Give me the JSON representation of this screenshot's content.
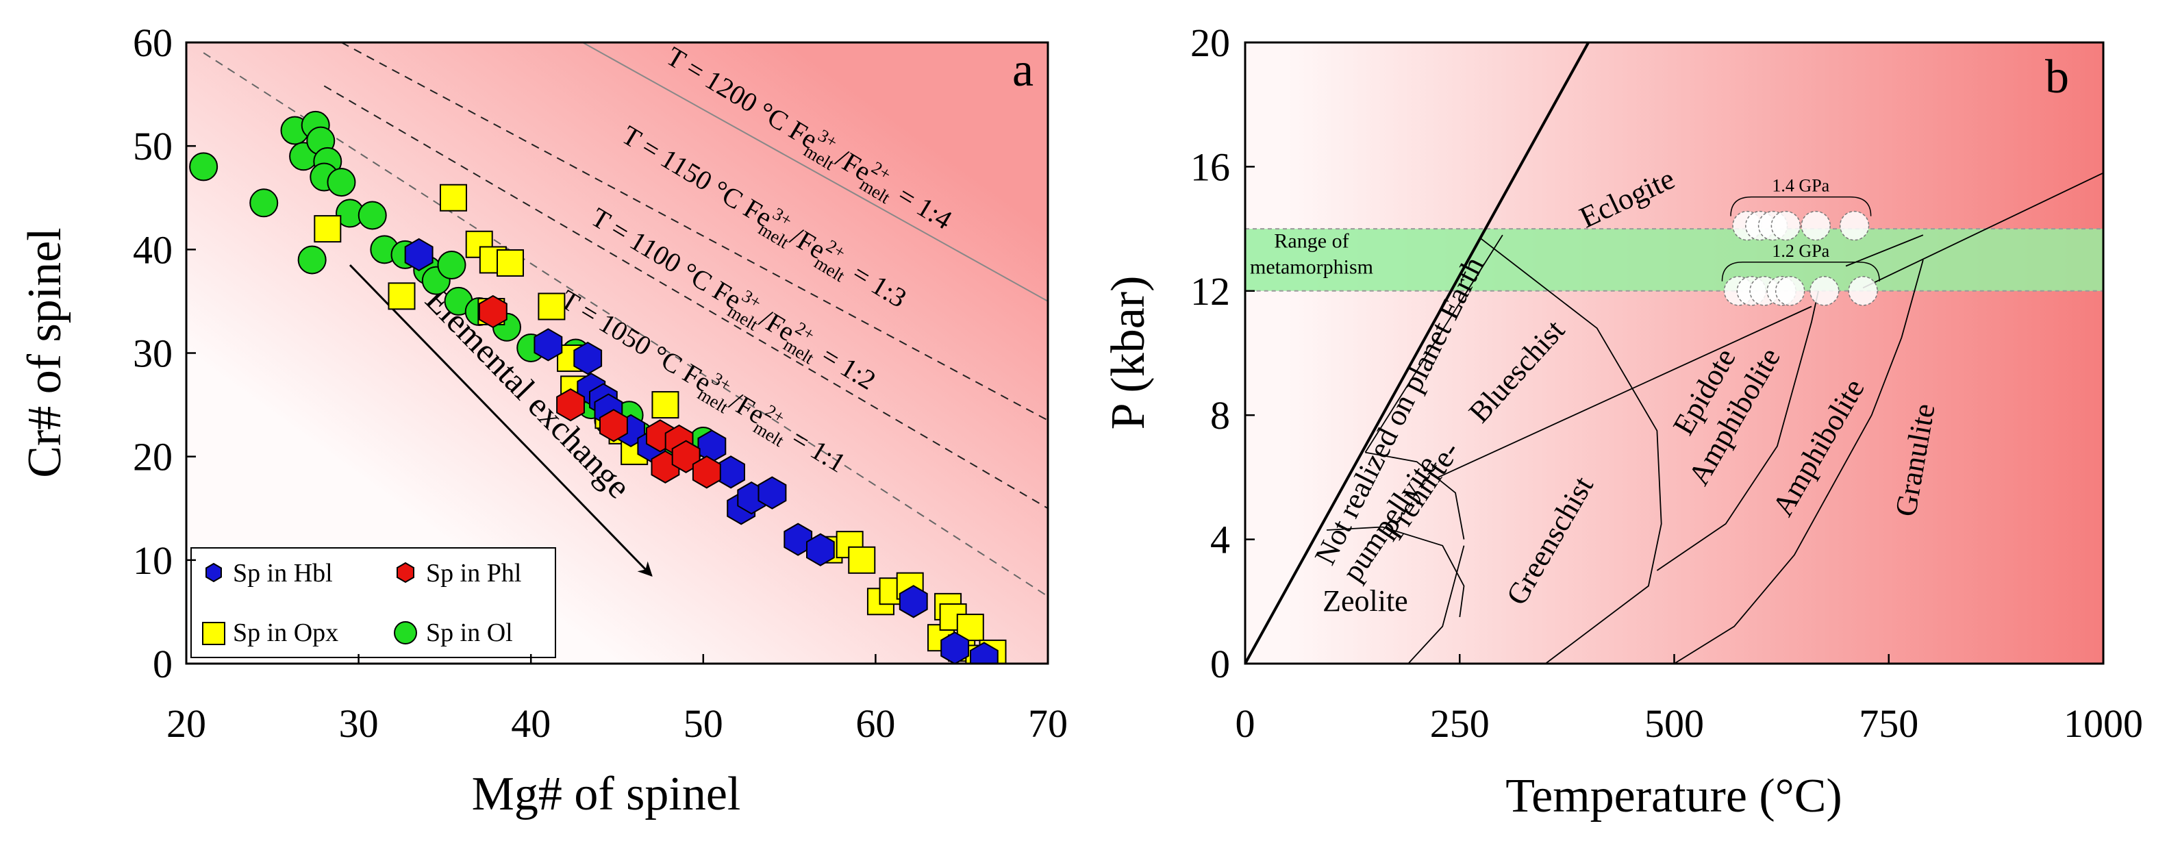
{
  "chart_data": [
    {
      "panel_label": "a",
      "type": "scatter",
      "xlabel": "Mg# of spinel",
      "ylabel": "Cr# of spinel",
      "xlim": [
        20,
        70
      ],
      "ylim": [
        0,
        60
      ],
      "xticks": [
        20,
        30,
        40,
        50,
        60,
        70
      ],
      "yticks": [
        0,
        10,
        20,
        30,
        40,
        50,
        60
      ],
      "colors": {
        "background_light": "#fffafa",
        "background_dark": "#f99a9a"
      },
      "isotherms": [
        {
          "prefix": "T = 1200 °C Fe",
          "ratio": "1:4",
          "from": [
            43,
            60
          ],
          "to": [
            70,
            35
          ],
          "style": "solid-gray"
        },
        {
          "prefix": "T = 1150 °C Fe",
          "ratio": "1:3",
          "from": [
            29,
            60
          ],
          "to": [
            70,
            23.5
          ],
          "style": "dashed"
        },
        {
          "prefix": "T = 1100 °C Fe",
          "ratio": "1:2",
          "from": [
            28,
            55.8
          ],
          "to": [
            70,
            15
          ],
          "style": "dashed"
        },
        {
          "prefix": "T = 1050 °C Fe",
          "ratio": "1:1",
          "from": [
            21,
            59
          ],
          "to": [
            70,
            6.5
          ],
          "style": "dashed-light"
        }
      ],
      "fe_ratio": {
        "sup_num": "3+",
        "sup_den": "2+",
        "sub": "melt",
        "slash": "/Fe",
        "eq": " = "
      },
      "arrow": {
        "label": "Elemental exchange",
        "from": [
          29.5,
          38.5
        ],
        "to": [
          47,
          8.5
        ]
      },
      "legend": [
        {
          "name": "Sp in Hbl",
          "marker": "hexagon",
          "color": "#1515d6"
        },
        {
          "name": "Sp in Phl",
          "marker": "hexagon",
          "color": "#e8140f"
        },
        {
          "name": "Sp in Opx",
          "marker": "square",
          "color": "#ffff00"
        },
        {
          "name": "Sp in Ol",
          "marker": "circle",
          "color": "#22dd22"
        }
      ],
      "series": [
        {
          "name": "Sp in Ol",
          "marker": "circle",
          "color": "#22dd22",
          "x": [
            21.0,
            24.5,
            26.3,
            27.5,
            26.8,
            27.8,
            28.2,
            28.0,
            29.0,
            27.3,
            29.5,
            30.8,
            31.5,
            32.7,
            34.0,
            34.5,
            35.4,
            35.8,
            37.0,
            38.6,
            40.0,
            42.6,
            43.5,
            44.5,
            45.7,
            46.3,
            47.5,
            48.0,
            49.3,
            50.0
          ],
          "y": [
            48.0,
            44.5,
            51.5,
            52.0,
            49.0,
            50.5,
            48.5,
            47.0,
            46.5,
            39.0,
            43.5,
            43.3,
            40.0,
            39.5,
            38.0,
            37.0,
            38.5,
            35.0,
            34.0,
            32.5,
            30.5,
            30.0,
            25.0,
            23.5,
            24.0,
            22.0,
            20.5,
            20.5,
            21.0,
            21.5
          ]
        },
        {
          "name": "Sp in Opx",
          "marker": "square",
          "color": "#ffff00",
          "x": [
            28.2,
            32.5,
            35.5,
            37.0,
            37.8,
            38.8,
            37.7,
            41.2,
            42.3,
            42.5,
            44.5,
            45.3,
            46.0,
            47.8,
            57.3,
            58.5,
            59.2,
            60.3,
            61.0,
            62.0,
            63.8,
            64.2,
            64.5,
            65.0,
            65.5,
            66.0,
            66.8
          ],
          "y": [
            42.0,
            35.5,
            45.0,
            40.5,
            39.0,
            38.7,
            34.0,
            34.5,
            29.5,
            26.5,
            24.0,
            22.5,
            20.5,
            25.0,
            11.0,
            11.5,
            10.0,
            6.0,
            7.0,
            7.5,
            2.5,
            5.5,
            4.5,
            1.5,
            3.5,
            0.5,
            1.0
          ]
        },
        {
          "name": "Sp in Hbl",
          "marker": "hexagon",
          "color": "#1515d6",
          "x": [
            33.5,
            41.0,
            43.3,
            43.5,
            44.2,
            44.5,
            45.8,
            47.0,
            49.0,
            50.5,
            51.6,
            52.2,
            52.8,
            54.0,
            55.5,
            56.8,
            62.2,
            64.6,
            66.3
          ],
          "y": [
            39.5,
            30.8,
            29.5,
            26.5,
            25.5,
            24.5,
            22.5,
            21.0,
            20.0,
            21.0,
            18.5,
            15.0,
            16.0,
            16.5,
            12.0,
            11.0,
            6.0,
            1.5,
            0.5
          ]
        },
        {
          "name": "Sp in Phl",
          "marker": "hexagon",
          "color": "#e8140f",
          "x": [
            37.8,
            42.3,
            44.8,
            47.5,
            47.8,
            48.6,
            49.0,
            50.2
          ],
          "y": [
            34.0,
            25.0,
            23.0,
            22.0,
            19.0,
            21.5,
            20.0,
            18.5
          ]
        }
      ]
    },
    {
      "panel_label": "b",
      "type": "line",
      "xlabel": "Temperature (°C)",
      "ylabel": "P (kbar)",
      "xlim": [
        0,
        1000
      ],
      "ylim": [
        0,
        20
      ],
      "xticks": [
        0,
        250,
        500,
        750,
        1000
      ],
      "yticks": [
        0,
        4,
        8,
        12,
        16,
        20
      ],
      "colors": {
        "background_light": "#fff7f7",
        "background_dark": "#f57e7e",
        "band": "#98eea0",
        "band_edge": "#9a9a9a"
      },
      "band": {
        "label_lines": [
          "Range of",
          "metamorphism"
        ],
        "ymin": 12,
        "ymax": 14
      },
      "boundary_curves": [
        {
          "name": "planet-limit",
          "thick": true,
          "points": [
            [
              0,
              0
            ],
            [
              400,
              20
            ]
          ]
        },
        {
          "name": "blueschist-greenschist",
          "points": [
            [
              140,
              6.8
            ],
            [
              300,
              13.8
            ]
          ]
        },
        {
          "name": "eclogite-blueschist",
          "points": [
            [
              274,
              13.7
            ],
            [
              410,
              10.8
            ],
            [
              480,
              7.5
            ],
            [
              485,
              4.5
            ],
            [
              470,
              2.5
            ],
            [
              350,
              0
            ]
          ]
        },
        {
          "name": "greenschist-epidote-amphibolite",
          "points": [
            [
              480,
              3.0
            ],
            [
              560,
              4.5
            ],
            [
              620,
              7.0
            ],
            [
              660,
              11.0
            ],
            [
              668,
              12.0
            ]
          ]
        },
        {
          "name": "amphibolite-granulite",
          "points": [
            [
              500,
              0
            ],
            [
              570,
              1.2
            ],
            [
              640,
              3.5
            ],
            [
              730,
              8.0
            ],
            [
              765,
              10.5
            ],
            [
              790,
              13.0
            ]
          ]
        },
        {
          "name": "blueschist-epidote",
          "points": [
            [
              225,
              6.0
            ],
            [
              660,
              11.5
            ]
          ]
        },
        {
          "name": "eclogite-amphibolite",
          "points": [
            [
              720,
              12.1
            ],
            [
              1000,
              15.8
            ]
          ]
        },
        {
          "name": "granulite-upper",
          "points": [
            [
              700,
              12.8
            ],
            [
              790,
              13.8
            ]
          ]
        },
        {
          "name": "prehnite-upper",
          "points": [
            [
              140,
              6.8
            ],
            [
              200,
              6.5
            ],
            [
              245,
              5.5
            ],
            [
              255,
              4.0
            ]
          ]
        },
        {
          "name": "prehnite-lower",
          "points": [
            [
              95,
              4.3
            ],
            [
              160,
              4.4
            ],
            [
              230,
              3.8
            ],
            [
              255,
              2.5
            ],
            [
              250,
              1.5
            ]
          ]
        },
        {
          "name": "zeolite-greenschist",
          "points": [
            [
              255,
              3.8
            ],
            [
              230,
              1.2
            ],
            [
              190,
              0
            ]
          ]
        }
      ],
      "facies_labels": [
        {
          "text": "Not realized on planet Earth",
          "at": [
            190,
            8.0
          ],
          "angle": -63.3
        },
        {
          "text": "Eclogite",
          "at": [
            450,
            14.7
          ],
          "angle": -25
        },
        {
          "text": "Blueschist",
          "at": [
            325,
            9.2
          ],
          "angle": -48
        },
        {
          "text": "Prehnite-",
          "at": [
            215,
            5.4
          ],
          "angle": -56
        },
        {
          "text": "pumpellyite",
          "at": [
            178,
            4.5
          ],
          "angle": -56
        },
        {
          "text": "Zeolite",
          "at": [
            140,
            1.7
          ],
          "angle": 0
        },
        {
          "text": "Greenschist",
          "at": [
            365,
            3.8
          ],
          "angle": -60
        },
        {
          "text": "Epidote",
          "at": [
            545,
            8.6
          ],
          "angle": -60
        },
        {
          "text": "Amphibolite",
          "at": [
            580,
            7.8
          ],
          "angle": -60
        },
        {
          "text": "Amphibolite",
          "at": [
            678,
            6.8
          ],
          "angle": -60
        },
        {
          "text": "Granulite",
          "at": [
            792,
            6.5
          ],
          "angle": -80
        }
      ],
      "pressure_markers": [
        {
          "label": "1.4 GPa",
          "y": 14.1,
          "x": [
            585,
            600,
            615,
            630,
            665,
            710
          ]
        },
        {
          "label": "1.2 GPa",
          "y": 12.0,
          "x": [
            575,
            590,
            605,
            625,
            635,
            675,
            720
          ]
        }
      ]
    }
  ]
}
